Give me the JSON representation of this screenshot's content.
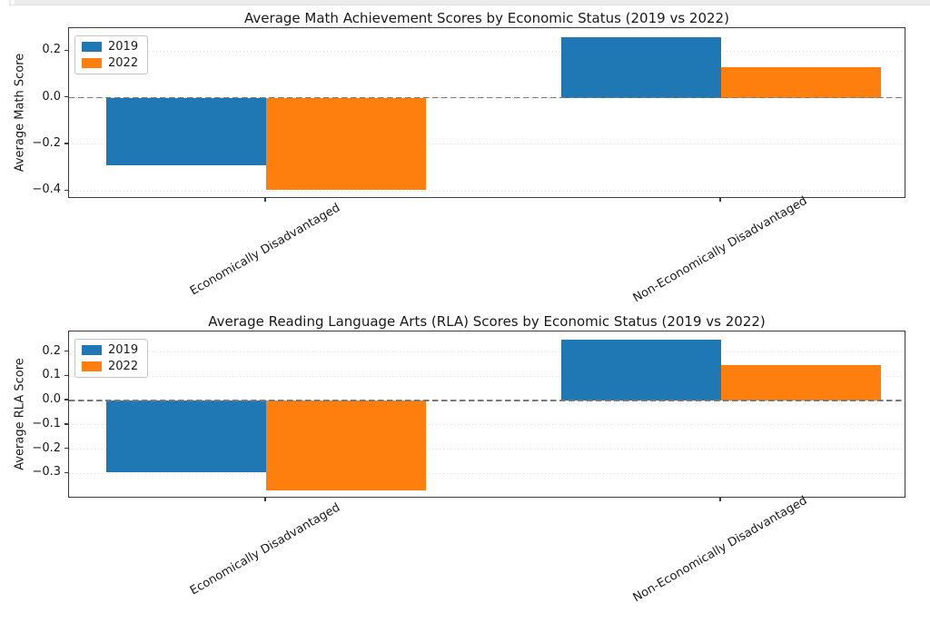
{
  "screen": {
    "top_strip_color": "#ececec",
    "background": "#ffffff"
  },
  "chart_data": [
    {
      "type": "bar",
      "title": "Average Math Achievement Scores by Economic Status (2019 vs 2022)",
      "ylabel": "Average Math Score",
      "xlabel": "",
      "categories": [
        "Economically Disadvantaged",
        "Non-Economically Disadvantaged"
      ],
      "series": [
        {
          "name": "2019",
          "color": "#1f77b4",
          "values": [
            -0.29,
            0.26
          ]
        },
        {
          "name": "2022",
          "color": "#ff7f0e",
          "values": [
            -0.395,
            0.13
          ]
        }
      ],
      "yticks": [
        0.2,
        0.0,
        -0.2,
        -0.4
      ],
      "ytick_labels": [
        "0.2",
        "0.0",
        "−0.2",
        "−0.4"
      ],
      "ylim": [
        -0.434,
        0.299
      ],
      "bar_width_fraction": 0.35,
      "legend_position": "upper left",
      "grid": "horizontal dotted",
      "zero_line": "gray dashed at y=0"
    },
    {
      "type": "bar",
      "title": "Average Reading Language Arts (RLA) Scores by Economic Status (2019 vs 2022)",
      "ylabel": "Average RLA Score",
      "xlabel": "",
      "categories": [
        "Economically Disadvantaged",
        "Non-Economically Disadvantaged"
      ],
      "series": [
        {
          "name": "2019",
          "color": "#1f77b4",
          "values": [
            -0.295,
            0.25
          ]
        },
        {
          "name": "2022",
          "color": "#ff7f0e",
          "values": [
            -0.37,
            0.145
          ]
        }
      ],
      "yticks": [
        0.2,
        0.1,
        0.0,
        -0.1,
        -0.2,
        -0.3
      ],
      "ytick_labels": [
        "0.2",
        "0.1",
        "0.0",
        "−0.1",
        "−0.2",
        "−0.3"
      ],
      "ylim": [
        -0.404,
        0.285
      ],
      "bar_width_fraction": 0.35,
      "legend_position": "upper left",
      "grid": "horizontal dotted",
      "zero_line": "gray dashed at y=0"
    }
  ]
}
